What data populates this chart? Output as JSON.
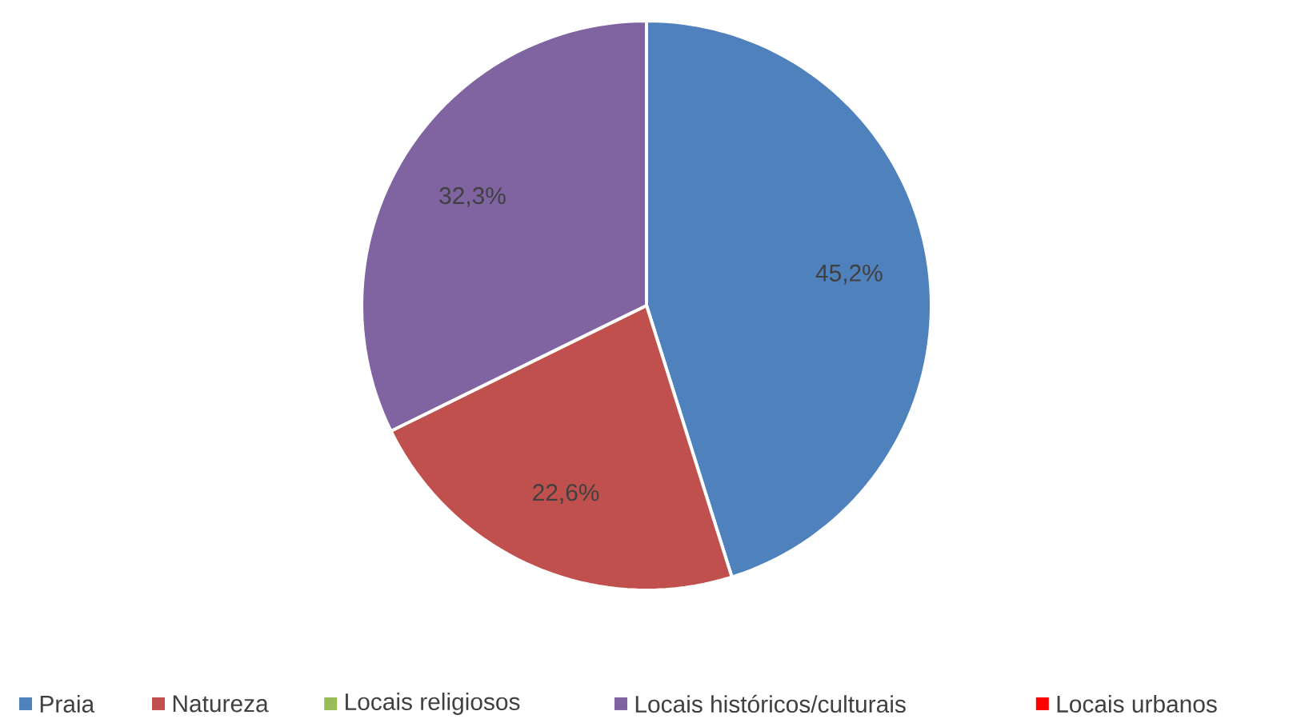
{
  "chart_data": {
    "type": "pie",
    "categories": [
      "Praia",
      "Natureza",
      "Locais religiosos",
      "Locais históricos/culturais",
      "Locais urbanos"
    ],
    "values": [
      45.2,
      22.6,
      0,
      32.3,
      0
    ],
    "colors": [
      "#4f81bd",
      "#c0504d",
      "#9bbb59",
      "#8064a2",
      "#ff0000"
    ],
    "value_labels": [
      "45,2%",
      "22,6%",
      null,
      "32,3%",
      null
    ],
    "legend": "bottom"
  }
}
